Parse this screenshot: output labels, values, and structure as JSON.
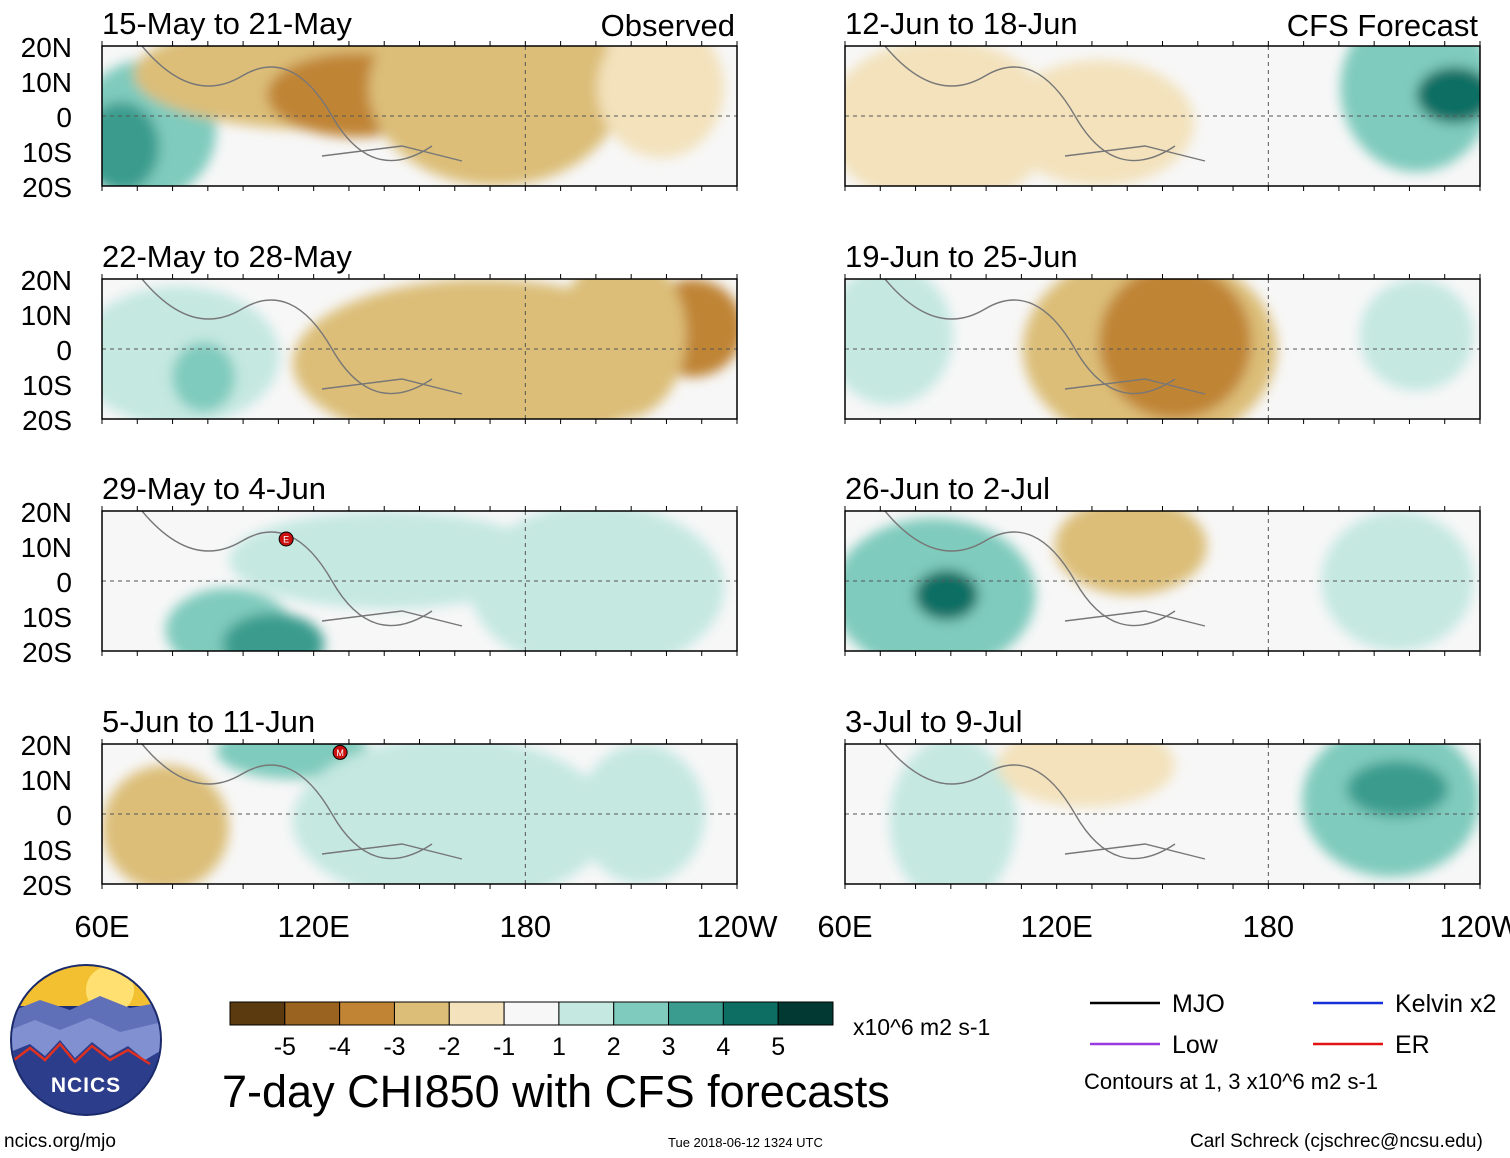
{
  "chart_data": {
    "type": "heatmap",
    "title": "7-day CHI850 with CFS forecasts",
    "units": "x10^6 m2 s-1",
    "x_ticks": [
      "60E",
      "120E",
      "180",
      "120W"
    ],
    "y_ticks": [
      "20N",
      "10N",
      "0",
      "10S",
      "20S"
    ],
    "xlim": [
      60,
      240
    ],
    "ylim": [
      -20,
      20
    ],
    "columns": [
      {
        "header": "Observed",
        "panels": [
          {
            "label": "15-May to 21-May"
          },
          {
            "label": "22-May to 28-May"
          },
          {
            "label": "29-May to 4-Jun",
            "markers": [
              "E"
            ]
          },
          {
            "label": "5-Jun to 11-Jun",
            "markers": [
              "M"
            ]
          }
        ]
      },
      {
        "header": "CFS Forecast",
        "panels": [
          {
            "label": "12-Jun to 18-Jun"
          },
          {
            "label": "19-Jun to 25-Jun"
          },
          {
            "label": "26-Jun to 2-Jul"
          },
          {
            "label": "3-Jul to 9-Jul"
          }
        ]
      }
    ],
    "colorbar": {
      "labels": [
        "-5",
        "-4",
        "-3",
        "-2",
        "-1",
        "1",
        "2",
        "3",
        "4",
        "5"
      ],
      "colors": [
        "#5a3a0e",
        "#9b6320",
        "#c08434",
        "#dcbe78",
        "#f3e2bc",
        "#f7f7f7",
        "#c5e8e1",
        "#7fcbbd",
        "#3a9c8e",
        "#0d6e64",
        "#023a33"
      ]
    },
    "legend": [
      {
        "name": "MJO",
        "color": "#000000"
      },
      {
        "name": "Kelvin x2",
        "color": "#1530d8"
      },
      {
        "name": "Low",
        "color": "#9a3ae0"
      },
      {
        "name": "ER",
        "color": "#e01414"
      }
    ],
    "contour_note": "Contours at 1, 3 x10^6 m2 s-1"
  },
  "branding": {
    "logo_text": "NCICS",
    "site": "ncics.org/mjo",
    "timestamp": "Tue 2018-06-12 1324 UTC",
    "author": "Carl Schreck (cjschrec@ncsu.edu)"
  }
}
